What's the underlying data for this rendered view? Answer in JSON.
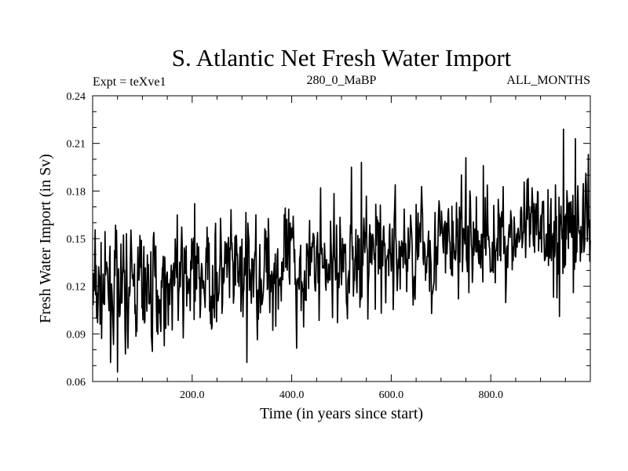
{
  "chart_data": {
    "type": "line",
    "title": "S. Atlantic Net Fresh Water Import",
    "subtitle_left": "Expt = teXve1",
    "subtitle_center": "280_0_MaBP",
    "subtitle_right": "ALL_MONTHS",
    "xlabel": "Time (in years since start)",
    "ylabel": "Fresh Water Import (in Sv)",
    "xlim": [
      0,
      1000
    ],
    "ylim": [
      0.06,
      0.24
    ],
    "xticks": [
      200,
      400,
      600,
      800
    ],
    "xtick_labels": [
      "200.0",
      "400.0",
      "600.0",
      "800.0"
    ],
    "yticks": [
      0.06,
      0.09,
      0.12,
      0.15,
      0.18,
      0.21,
      0.24
    ],
    "ytick_labels": [
      "0.06",
      "0.09",
      "0.12",
      "0.15",
      "0.18",
      "0.21",
      "0.24"
    ],
    "series": [
      {
        "name": "fresh water import",
        "generator": {
          "n": 1000,
          "x_start": 1,
          "x_step": 1,
          "start_mean": 0.115,
          "end_mean": 0.158,
          "std": 0.0165,
          "seed": 7
        },
        "anchors": [
          {
            "x": 50,
            "y": 0.066
          },
          {
            "x": 95,
            "y": 0.152
          },
          {
            "x": 120,
            "y": 0.079
          },
          {
            "x": 170,
            "y": 0.165
          },
          {
            "x": 205,
            "y": 0.172
          },
          {
            "x": 310,
            "y": 0.072
          },
          {
            "x": 410,
            "y": 0.081
          },
          {
            "x": 458,
            "y": 0.182
          },
          {
            "x": 520,
            "y": 0.195
          },
          {
            "x": 540,
            "y": 0.198
          },
          {
            "x": 580,
            "y": 0.103
          },
          {
            "x": 750,
            "y": 0.201
          },
          {
            "x": 785,
            "y": 0.196
          },
          {
            "x": 938,
            "y": 0.101
          },
          {
            "x": 946,
            "y": 0.219
          },
          {
            "x": 966,
            "y": 0.116
          },
          {
            "x": 970,
            "y": 0.213
          },
          {
            "x": 996,
            "y": 0.203
          }
        ]
      }
    ]
  }
}
